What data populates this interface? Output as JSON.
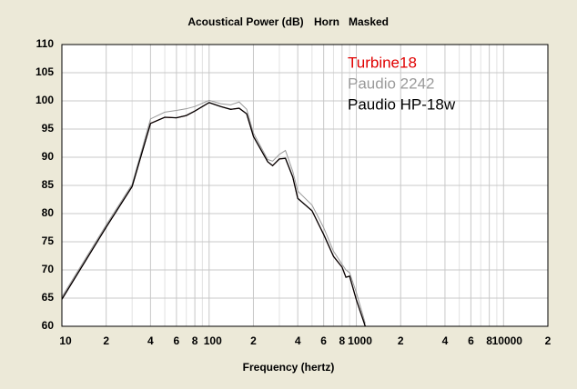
{
  "chart_data": {
    "type": "line",
    "title": "Acoustical Power (dB)",
    "subtitle": [
      "Horn",
      "Masked"
    ],
    "x_label": "Frequency (hertz)",
    "x_scale": "log",
    "xlim": [
      10,
      20000
    ],
    "ylim": [
      60,
      110
    ],
    "xticks": [
      10,
      {
        "value": 20,
        "label": "2"
      },
      {
        "value": 40,
        "label": "4"
      },
      {
        "value": 60,
        "label": "6"
      },
      {
        "value": 80,
        "label": "8"
      },
      100,
      {
        "value": 200,
        "label": "2"
      },
      {
        "value": 400,
        "label": "4"
      },
      {
        "value": 600,
        "label": "6"
      },
      {
        "value": 800,
        "label": "8"
      },
      1000,
      {
        "value": 2000,
        "label": "2"
      },
      {
        "value": 4000,
        "label": "4"
      },
      {
        "value": 6000,
        "label": "6"
      },
      {
        "value": 8000,
        "label": "8"
      },
      10000,
      {
        "value": 20000,
        "label": "2"
      }
    ],
    "x_minor_grid": [
      30,
      50,
      70,
      90,
      300,
      500,
      700,
      900,
      3000,
      5000,
      7000,
      9000
    ],
    "yticks": [
      60,
      65,
      70,
      75,
      80,
      85,
      90,
      95,
      100,
      105,
      110
    ],
    "grid": true,
    "legend": "top-right",
    "x": [
      10,
      20,
      30,
      40,
      50,
      60,
      70,
      80,
      100,
      120,
      140,
      160,
      180,
      200,
      250,
      270,
      300,
      330,
      370,
      400,
      500,
      600,
      700,
      800,
      850,
      900,
      1000,
      1150
    ],
    "series": [
      {
        "name": "Turbine18",
        "color": "#e00000",
        "values": [
          64.8,
          77.6,
          84.8,
          96,
          97.1,
          97,
          97.4,
          98.2,
          99.7,
          99,
          98.5,
          98.7,
          97.7,
          93.7,
          89.2,
          88.5,
          89.7,
          89.8,
          86.5,
          82.7,
          80.5,
          76.3,
          72.4,
          70.5,
          68.7,
          68.9,
          64.7,
          60
        ]
      },
      {
        "name": "Paudio 2242",
        "color": "#9a9a9a",
        "values": [
          65.2,
          78,
          85.2,
          96.8,
          98,
          98.3,
          98.6,
          99,
          100.1,
          99.5,
          99.3,
          99.8,
          98.5,
          94.3,
          89.6,
          89.3,
          90.5,
          91.2,
          87.5,
          84,
          81.5,
          77.5,
          73.3,
          71,
          70,
          69.5,
          66,
          60.5
        ]
      },
      {
        "name": "Paudio HP-18w",
        "color": "#000000",
        "values": [
          64.8,
          77.6,
          84.8,
          96,
          97.1,
          97,
          97.4,
          98.2,
          99.7,
          99,
          98.5,
          98.7,
          97.7,
          93.7,
          89.2,
          88.5,
          89.7,
          89.8,
          86.5,
          82.7,
          80.5,
          76.3,
          72.4,
          70.5,
          68.7,
          68.9,
          64.7,
          60
        ]
      }
    ]
  }
}
